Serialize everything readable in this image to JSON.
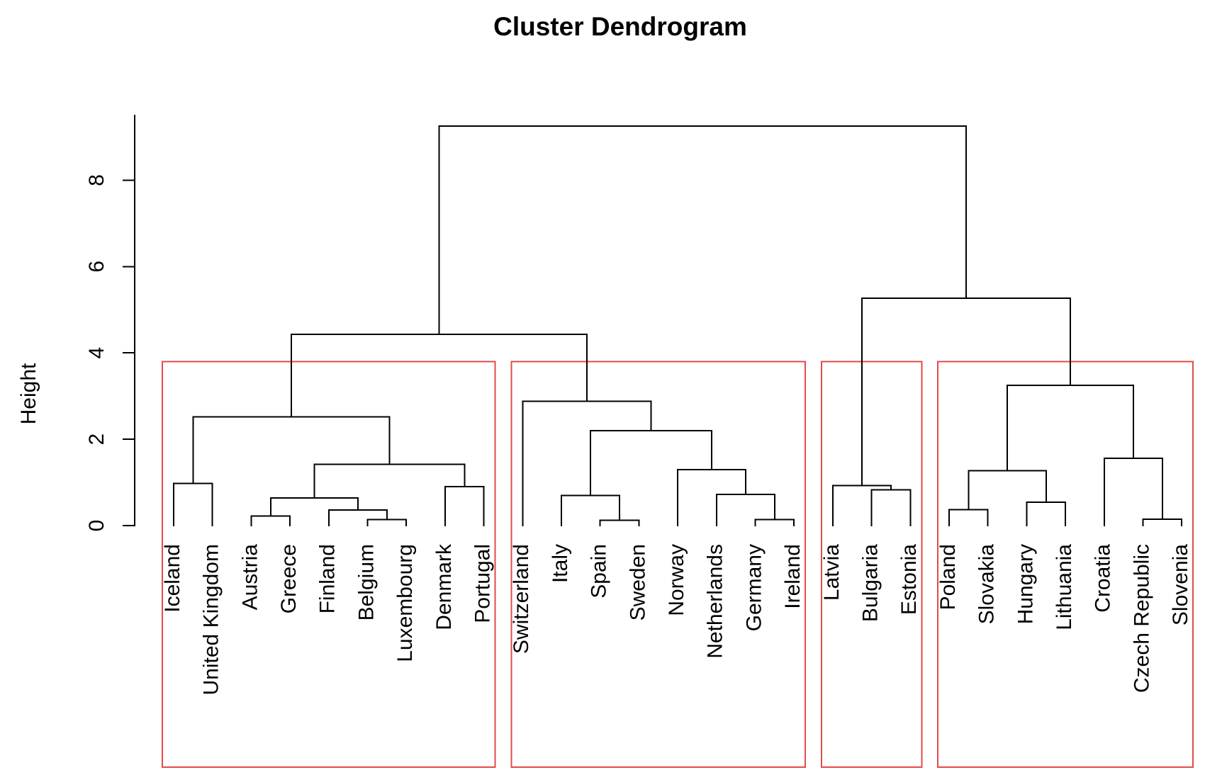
{
  "chart_data": {
    "type": "dendrogram",
    "title": "Cluster Dendrogram",
    "ylabel": "Height",
    "ylim": [
      0,
      9.5
    ],
    "yticks": [
      0,
      2,
      4,
      6,
      8
    ],
    "colors": {
      "tree": "#000000",
      "cluster_box": "#e34a4a",
      "text": "#000000"
    },
    "leaves": [
      "Iceland",
      "United Kingdom",
      "Austria",
      "Greece",
      "Finland",
      "Belgium",
      "Luxembourg",
      "Denmark",
      "Portugal",
      "Switzerland",
      "Italy",
      "Spain",
      "Sweden",
      "Norway",
      "Netherlands",
      "Germany",
      "Ireland",
      "Latvia",
      "Bulgaria",
      "Estonia",
      "Poland",
      "Slovakia",
      "Hungary",
      "Lithuania",
      "Croatia",
      "Czech Republic",
      "Slovenia"
    ],
    "merges": [
      {
        "id": "A",
        "children": [
          "Iceland",
          "United Kingdom"
        ],
        "height": 0.98
      },
      {
        "id": "B",
        "children": [
          "Austria",
          "Greece"
        ],
        "height": 0.22
      },
      {
        "id": "C",
        "children": [
          "Belgium",
          "Luxembourg"
        ],
        "height": 0.14
      },
      {
        "id": "D",
        "children": [
          "Finland",
          "C"
        ],
        "height": 0.36
      },
      {
        "id": "E",
        "children": [
          "B",
          "D"
        ],
        "height": 0.64
      },
      {
        "id": "F",
        "children": [
          "Denmark",
          "Portugal"
        ],
        "height": 0.9
      },
      {
        "id": "G",
        "children": [
          "E",
          "F"
        ],
        "height": 1.42
      },
      {
        "id": "H",
        "children": [
          "A",
          "G"
        ],
        "height": 2.52
      },
      {
        "id": "I",
        "children": [
          "Spain",
          "Sweden"
        ],
        "height": 0.12
      },
      {
        "id": "J",
        "children": [
          "Italy",
          "I"
        ],
        "height": 0.7
      },
      {
        "id": "K",
        "children": [
          "Germany",
          "Ireland"
        ],
        "height": 0.14
      },
      {
        "id": "L",
        "children": [
          "Netherlands",
          "K"
        ],
        "height": 0.72
      },
      {
        "id": "M",
        "children": [
          "Norway",
          "L"
        ],
        "height": 1.3
      },
      {
        "id": "N",
        "children": [
          "J",
          "M"
        ],
        "height": 2.2
      },
      {
        "id": "O",
        "children": [
          "Switzerland",
          "N"
        ],
        "height": 2.88
      },
      {
        "id": "P",
        "children": [
          "H",
          "O"
        ],
        "height": 4.43
      },
      {
        "id": "Q",
        "children": [
          "Bulgaria",
          "Estonia"
        ],
        "height": 0.83
      },
      {
        "id": "R",
        "children": [
          "Latvia",
          "Q"
        ],
        "height": 0.93
      },
      {
        "id": "S",
        "children": [
          "Poland",
          "Slovakia"
        ],
        "height": 0.37
      },
      {
        "id": "T",
        "children": [
          "Hungary",
          "Lithuania"
        ],
        "height": 0.54
      },
      {
        "id": "U",
        "children": [
          "S",
          "T"
        ],
        "height": 1.27
      },
      {
        "id": "V",
        "children": [
          "Czech Republic",
          "Slovenia"
        ],
        "height": 0.15
      },
      {
        "id": "W",
        "children": [
          "Croatia",
          "V"
        ],
        "height": 1.56
      },
      {
        "id": "X",
        "children": [
          "U",
          "W"
        ],
        "height": 3.25
      },
      {
        "id": "Y",
        "children": [
          "R",
          "X"
        ],
        "height": 5.27
      },
      {
        "id": "Z",
        "children": [
          "P",
          "Y"
        ],
        "height": 9.25
      }
    ],
    "cluster_boxes": [
      {
        "from": "Iceland",
        "to": "Portugal",
        "cut_height": 3.8
      },
      {
        "from": "Switzerland",
        "to": "Ireland",
        "cut_height": 3.8
      },
      {
        "from": "Latvia",
        "to": "Estonia",
        "cut_height": 3.8
      },
      {
        "from": "Poland",
        "to": "Slovenia",
        "cut_height": 3.8
      }
    ]
  }
}
